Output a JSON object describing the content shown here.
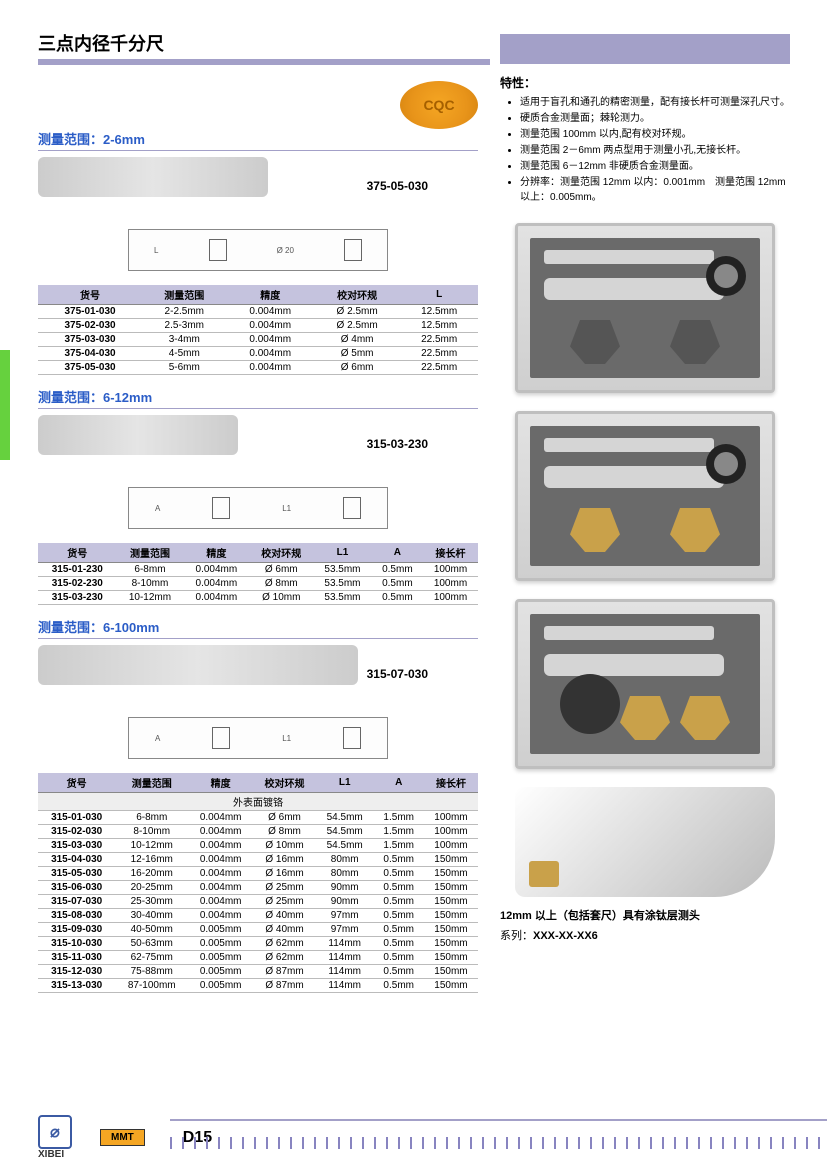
{
  "page_title": "三点内径千分尺",
  "cqc": "CQC",
  "page_number": "D15",
  "brand": {
    "logo_text": "XIBEI",
    "mmt": "MMT"
  },
  "sections": [
    {
      "title": "测量范围：2-6mm",
      "code": "375-05-030",
      "img_class": "pi-small",
      "diagram_labels": [
        "L",
        "Ø 20"
      ],
      "table_cols": [
        "货号",
        "测量范围",
        "精度",
        "校对环规",
        "L"
      ],
      "rows": [
        [
          "375-01-030",
          "2-2.5mm",
          "0.004mm",
          "Ø 2.5mm",
          "12.5mm"
        ],
        [
          "375-02-030",
          "2.5-3mm",
          "0.004mm",
          "Ø 2.5mm",
          "12.5mm"
        ],
        [
          "375-03-030",
          "3-4mm",
          "0.004mm",
          "Ø 4mm",
          "22.5mm"
        ],
        [
          "375-04-030",
          "4-5mm",
          "0.004mm",
          "Ø 5mm",
          "22.5mm"
        ],
        [
          "375-05-030",
          "5-6mm",
          "0.004mm",
          "Ø 6mm",
          "22.5mm"
        ]
      ]
    },
    {
      "title": "测量范围：6-12mm",
      "code": "315-03-230",
      "img_class": "pi-med",
      "diagram_labels": [
        "A",
        "L1"
      ],
      "table_cols": [
        "货号",
        "测量范围",
        "精度",
        "校对环规",
        "L1",
        "A",
        "接长杆"
      ],
      "rows": [
        [
          "315-01-230",
          "6-8mm",
          "0.004mm",
          "Ø 6mm",
          "53.5mm",
          "0.5mm",
          "100mm"
        ],
        [
          "315-02-230",
          "8-10mm",
          "0.004mm",
          "Ø 8mm",
          "53.5mm",
          "0.5mm",
          "100mm"
        ],
        [
          "315-03-230",
          "10-12mm",
          "0.004mm",
          "Ø 10mm",
          "53.5mm",
          "0.5mm",
          "100mm"
        ]
      ]
    },
    {
      "title": "测量范围：6-100mm",
      "code": "315-07-030",
      "img_class": "pi-large",
      "diagram_labels": [
        "A",
        "L1"
      ],
      "table_cols": [
        "货号",
        "测量范围",
        "精度",
        "校对环规",
        "L1",
        "A",
        "接长杆"
      ],
      "subhead": "外表面镀铬",
      "rows": [
        [
          "315-01-030",
          "6-8mm",
          "0.004mm",
          "Ø 6mm",
          "54.5mm",
          "1.5mm",
          "100mm"
        ],
        [
          "315-02-030",
          "8-10mm",
          "0.004mm",
          "Ø 8mm",
          "54.5mm",
          "1.5mm",
          "100mm"
        ],
        [
          "315-03-030",
          "10-12mm",
          "0.004mm",
          "Ø 10mm",
          "54.5mm",
          "1.5mm",
          "100mm"
        ],
        [
          "315-04-030",
          "12-16mm",
          "0.004mm",
          "Ø 16mm",
          "80mm",
          "0.5mm",
          "150mm"
        ],
        [
          "315-05-030",
          "16-20mm",
          "0.004mm",
          "Ø 16mm",
          "80mm",
          "0.5mm",
          "150mm"
        ],
        [
          "315-06-030",
          "20-25mm",
          "0.004mm",
          "Ø 25mm",
          "90mm",
          "0.5mm",
          "150mm"
        ],
        [
          "315-07-030",
          "25-30mm",
          "0.004mm",
          "Ø 25mm",
          "90mm",
          "0.5mm",
          "150mm"
        ],
        [
          "315-08-030",
          "30-40mm",
          "0.004mm",
          "Ø 40mm",
          "97mm",
          "0.5mm",
          "150mm"
        ],
        [
          "315-09-030",
          "40-50mm",
          "0.005mm",
          "Ø 40mm",
          "97mm",
          "0.5mm",
          "150mm"
        ],
        [
          "315-10-030",
          "50-63mm",
          "0.005mm",
          "Ø 62mm",
          "114mm",
          "0.5mm",
          "150mm"
        ],
        [
          "315-11-030",
          "62-75mm",
          "0.005mm",
          "Ø 62mm",
          "114mm",
          "0.5mm",
          "150mm"
        ],
        [
          "315-12-030",
          "75-88mm",
          "0.005mm",
          "Ø 87mm",
          "114mm",
          "0.5mm",
          "150mm"
        ],
        [
          "315-13-030",
          "87-100mm",
          "0.005mm",
          "Ø 87mm",
          "114mm",
          "0.5mm",
          "150mm"
        ]
      ]
    }
  ],
  "features": {
    "title": "特性：",
    "items": [
      "适用于盲孔和通孔的精密测量，配有接长杆可测量深孔尺寸。",
      "硬质合金测量面；棘轮测力。",
      "测量范围 100mm 以内,配有校对环规。",
      "测量范围 2－6mm 两点型用于测量小孔,无接长杆。",
      "测量范围 6－12mm 非硬质合金测量面。",
      "分辨率：测量范围 12mm 以内：0.001mm　测量范围 12mm 以上：0.005mm。"
    ]
  },
  "note_12mm": "12mm 以上（包括套尺）具有涂钛层测头",
  "series_label": "系列：",
  "series_value": "XXX-XX-XX6",
  "colors": {
    "accent_purple": "#a3a0c8",
    "title_blue": "#2b5dc7",
    "badge_orange": "#f5a623",
    "green_tab": "#66d13e"
  }
}
